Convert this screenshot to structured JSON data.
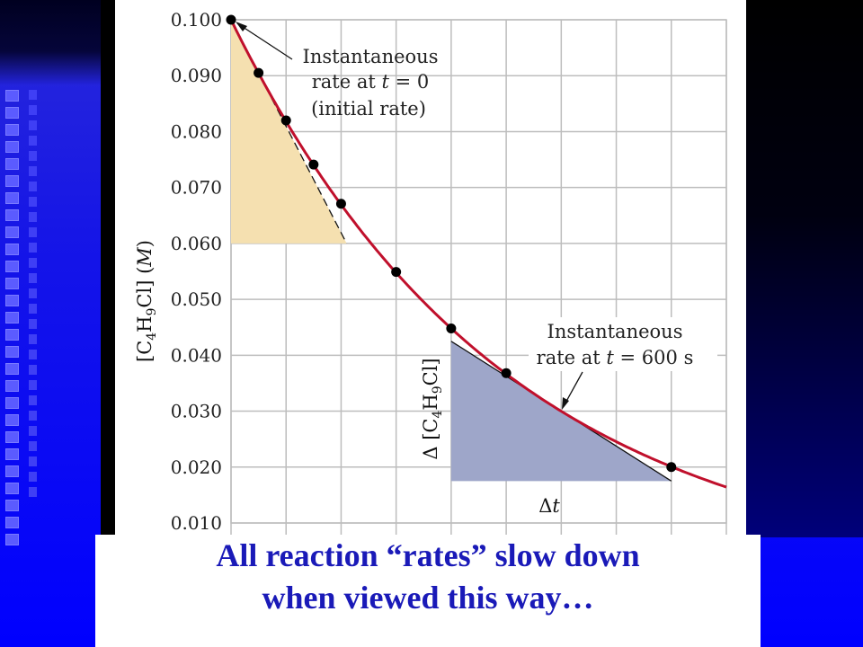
{
  "chart_data": {
    "type": "scatter",
    "ylabel_parts": [
      "[C",
      "4",
      "H",
      "9",
      "Cl] (",
      "M",
      ")"
    ],
    "y_ticks": [
      "0.100",
      "0.090",
      "0.080",
      "0.070",
      "0.060",
      "0.050",
      "0.040",
      "0.030",
      "0.020",
      "0.010"
    ],
    "ylim": [
      0.01,
      0.1
    ],
    "xlim": [
      0,
      900
    ],
    "x_gridlines": [
      0,
      100,
      200,
      300,
      400,
      500,
      600,
      700,
      800,
      900
    ],
    "grid": true,
    "points": [
      {
        "x": 0,
        "y": 0.1
      },
      {
        "x": 50,
        "y": 0.0905
      },
      {
        "x": 100,
        "y": 0.082
      },
      {
        "x": 150,
        "y": 0.0741
      },
      {
        "x": 200,
        "y": 0.0671
      },
      {
        "x": 300,
        "y": 0.0549
      },
      {
        "x": 400,
        "y": 0.0448
      },
      {
        "x": 500,
        "y": 0.0368
      },
      {
        "x": 800,
        "y": 0.02
      }
    ],
    "curve_color": "#c0102c",
    "point_color": "#000000",
    "initial_tangent": {
      "x": [
        0,
        210
      ],
      "y": [
        0.1,
        0.06
      ],
      "fill": "#f5e0b0"
    },
    "tangent_600": {
      "x": [
        400,
        800
      ],
      "y": [
        0.0425,
        0.0175
      ],
      "fill": "#9ea6c9"
    },
    "annotations": {
      "initial": {
        "line1": "Instantaneous",
        "line2_pre": "rate at ",
        "t": "t",
        "line2_post": " = 0",
        "line3": "(initial rate)"
      },
      "at600": {
        "line1": "Instantaneous",
        "line2_pre": "rate at ",
        "t": "t",
        "line2_post": " = 600 s"
      },
      "delta_conc": {
        "pre": "Δ [C",
        "sub1": "4",
        "mid": "H",
        "sub2": "9",
        "post": "Cl]"
      },
      "delta_t": {
        "pre": "Δ",
        "t": "t"
      }
    }
  },
  "caption": {
    "line1": "All reaction “rates” slow down",
    "line2": "when viewed this way…"
  },
  "colors": {
    "background": "#0000ff",
    "caption_text": "#1a1ab8",
    "panel": "#ffffff"
  }
}
